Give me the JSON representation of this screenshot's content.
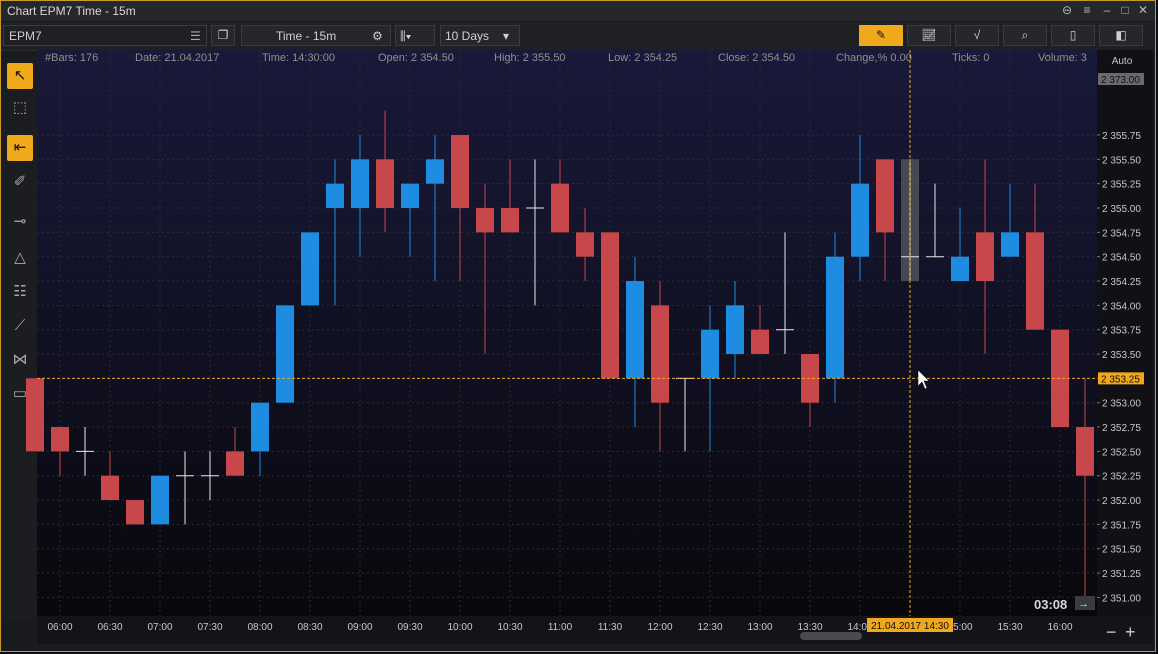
{
  "window": {
    "title": "Chart EPM7 Time - 15m"
  },
  "toolbar": {
    "symbol": "EPM7",
    "interval": "Time - 15m",
    "range": "10 Days"
  },
  "infobar": [
    {
      "label": "#Bars:",
      "value": "176"
    },
    {
      "label": "Date:",
      "value": "21.04.2017"
    },
    {
      "label": "Time:",
      "value": "14:30:00"
    },
    {
      "label": "Open:",
      "value": "2 354.50"
    },
    {
      "label": "High:",
      "value": "2 355.50"
    },
    {
      "label": "Low:",
      "value": "2 354.25"
    },
    {
      "label": "Close:",
      "value": "2 354.50"
    },
    {
      "label": "Change,%",
      "value": "0.00"
    },
    {
      "label": "Ticks:",
      "value": "0"
    },
    {
      "label": "Volume:",
      "value": "3"
    }
  ],
  "price_axis": {
    "mode": "Auto",
    "top_label": "2 373.00",
    "crosshair_label": "2 353.25"
  },
  "time_axis": {
    "crosshair_label": "21.04.2017 14:30"
  },
  "countdown": "03:08",
  "colors": {
    "up": "#1e8ce0",
    "down": "#c8474a",
    "accent": "#f0a81c",
    "doji": "#e8e8e8"
  },
  "chart_data": {
    "type": "candlestick",
    "ylim": [
      2350.85,
      2356.5
    ],
    "y_ticks": [
      "2 351.00",
      "2 351.25",
      "2 351.50",
      "2 351.75",
      "2 352.00",
      "2 352.25",
      "2 352.50",
      "2 352.75",
      "2 353.00",
      "2 353.25",
      "2 353.50",
      "2 353.75",
      "2 354.00",
      "2 354.25",
      "2 354.50",
      "2 354.75",
      "2 355.00",
      "2 355.25",
      "2 355.50",
      "2 355.75"
    ],
    "y_tick_values": [
      2351.0,
      2351.25,
      2351.5,
      2351.75,
      2352.0,
      2352.25,
      2352.5,
      2352.75,
      2353.0,
      2353.25,
      2353.5,
      2353.75,
      2354.0,
      2354.25,
      2354.5,
      2354.75,
      2355.0,
      2355.25,
      2355.5,
      2355.75
    ],
    "x_ticks": [
      "06:00",
      "06:30",
      "07:00",
      "07:30",
      "08:00",
      "08:30",
      "09:00",
      "09:30",
      "10:00",
      "10:30",
      "11:00",
      "11:30",
      "12:00",
      "12:30",
      "13:00",
      "13:30",
      "14:00",
      "14:30",
      "15:00",
      "15:30",
      "16:00"
    ],
    "bar_interval_minutes": 15,
    "first_bar_time": "05:45",
    "crosshair_time": "14:30",
    "crosshair_price": 2353.25,
    "candles": [
      {
        "t": "05:45",
        "o": 2353.25,
        "h": 2353.25,
        "l": 2352.5,
        "c": 2352.5
      },
      {
        "t": "06:00",
        "o": 2352.75,
        "h": 2352.75,
        "l": 2352.25,
        "c": 2352.5
      },
      {
        "t": "06:15",
        "o": 2352.5,
        "h": 2352.75,
        "l": 2352.25,
        "c": 2352.5
      },
      {
        "t": "06:30",
        "o": 2352.25,
        "h": 2352.5,
        "l": 2352.0,
        "c": 2352.0
      },
      {
        "t": "06:45",
        "o": 2352.0,
        "h": 2352.0,
        "l": 2351.75,
        "c": 2351.75
      },
      {
        "t": "07:00",
        "o": 2351.75,
        "h": 2352.25,
        "l": 2351.75,
        "c": 2352.25
      },
      {
        "t": "07:15",
        "o": 2352.25,
        "h": 2352.5,
        "l": 2351.75,
        "c": 2352.25
      },
      {
        "t": "07:30",
        "o": 2352.25,
        "h": 2352.5,
        "l": 2352.0,
        "c": 2352.25
      },
      {
        "t": "07:45",
        "o": 2352.5,
        "h": 2352.75,
        "l": 2352.25,
        "c": 2352.25
      },
      {
        "t": "08:00",
        "o": 2352.5,
        "h": 2353.0,
        "l": 2352.25,
        "c": 2353.0
      },
      {
        "t": "08:15",
        "o": 2353.0,
        "h": 2354.0,
        "l": 2353.0,
        "c": 2354.0
      },
      {
        "t": "08:30",
        "o": 2354.0,
        "h": 2354.75,
        "l": 2354.0,
        "c": 2354.75
      },
      {
        "t": "08:45",
        "o": 2355.0,
        "h": 2355.5,
        "l": 2354.0,
        "c": 2355.25
      },
      {
        "t": "09:00",
        "o": 2355.0,
        "h": 2355.75,
        "l": 2354.5,
        "c": 2355.5
      },
      {
        "t": "09:15",
        "o": 2355.5,
        "h": 2356.0,
        "l": 2354.75,
        "c": 2355.0
      },
      {
        "t": "09:30",
        "o": 2355.0,
        "h": 2355.25,
        "l": 2354.5,
        "c": 2355.25
      },
      {
        "t": "09:45",
        "o": 2355.25,
        "h": 2355.75,
        "l": 2354.25,
        "c": 2355.5
      },
      {
        "t": "10:00",
        "o": 2355.75,
        "h": 2355.75,
        "l": 2354.25,
        "c": 2355.0
      },
      {
        "t": "10:15",
        "o": 2355.0,
        "h": 2355.25,
        "l": 2353.5,
        "c": 2354.75
      },
      {
        "t": "10:30",
        "o": 2355.0,
        "h": 2355.5,
        "l": 2354.75,
        "c": 2354.75
      },
      {
        "t": "10:45",
        "o": 2355.0,
        "h": 2355.5,
        "l": 2354.0,
        "c": 2355.0
      },
      {
        "t": "11:00",
        "o": 2355.25,
        "h": 2355.5,
        "l": 2354.75,
        "c": 2354.75
      },
      {
        "t": "11:15",
        "o": 2354.75,
        "h": 2355.0,
        "l": 2354.25,
        "c": 2354.5
      },
      {
        "t": "11:30",
        "o": 2354.75,
        "h": 2354.75,
        "l": 2353.25,
        "c": 2353.25
      },
      {
        "t": "11:45",
        "o": 2353.25,
        "h": 2354.5,
        "l": 2352.75,
        "c": 2354.25
      },
      {
        "t": "12:00",
        "o": 2354.0,
        "h": 2354.25,
        "l": 2352.5,
        "c": 2353.0
      },
      {
        "t": "12:15",
        "o": 2353.25,
        "h": 2353.25,
        "l": 2352.5,
        "c": 2353.25
      },
      {
        "t": "12:30",
        "o": 2353.25,
        "h": 2354.0,
        "l": 2352.5,
        "c": 2353.75
      },
      {
        "t": "12:45",
        "o": 2353.5,
        "h": 2354.25,
        "l": 2353.25,
        "c": 2354.0
      },
      {
        "t": "13:00",
        "o": 2353.75,
        "h": 2354.0,
        "l": 2353.5,
        "c": 2353.5
      },
      {
        "t": "13:15",
        "o": 2353.75,
        "h": 2354.75,
        "l": 2353.5,
        "c": 2353.75
      },
      {
        "t": "13:30",
        "o": 2353.5,
        "h": 2353.5,
        "l": 2352.75,
        "c": 2353.0
      },
      {
        "t": "13:45",
        "o": 2353.25,
        "h": 2354.75,
        "l": 2353.0,
        "c": 2354.5
      },
      {
        "t": "14:00",
        "o": 2354.5,
        "h": 2355.75,
        "l": 2354.25,
        "c": 2355.25
      },
      {
        "t": "14:15",
        "o": 2355.5,
        "h": 2355.5,
        "l": 2354.25,
        "c": 2354.75
      },
      {
        "t": "14:30",
        "o": 2354.5,
        "h": 2355.5,
        "l": 2354.25,
        "c": 2354.5
      },
      {
        "t": "14:45",
        "o": 2354.5,
        "h": 2355.25,
        "l": 2354.5,
        "c": 2354.5
      },
      {
        "t": "15:00",
        "o": 2354.25,
        "h": 2355.0,
        "l": 2354.25,
        "c": 2354.5
      },
      {
        "t": "15:15",
        "o": 2354.75,
        "h": 2355.5,
        "l": 2353.5,
        "c": 2354.25
      },
      {
        "t": "15:30",
        "o": 2354.5,
        "h": 2355.25,
        "l": 2354.5,
        "c": 2354.75
      },
      {
        "t": "15:45",
        "o": 2354.75,
        "h": 2355.25,
        "l": 2353.75,
        "c": 2353.75
      },
      {
        "t": "16:00",
        "o": 2353.75,
        "h": 2353.75,
        "l": 2352.75,
        "c": 2352.75
      },
      {
        "t": "16:15",
        "o": 2352.75,
        "h": 2353.25,
        "l": 2351.0,
        "c": 2352.25
      }
    ],
    "highlighted_bar": "14:30",
    "grid": true
  }
}
